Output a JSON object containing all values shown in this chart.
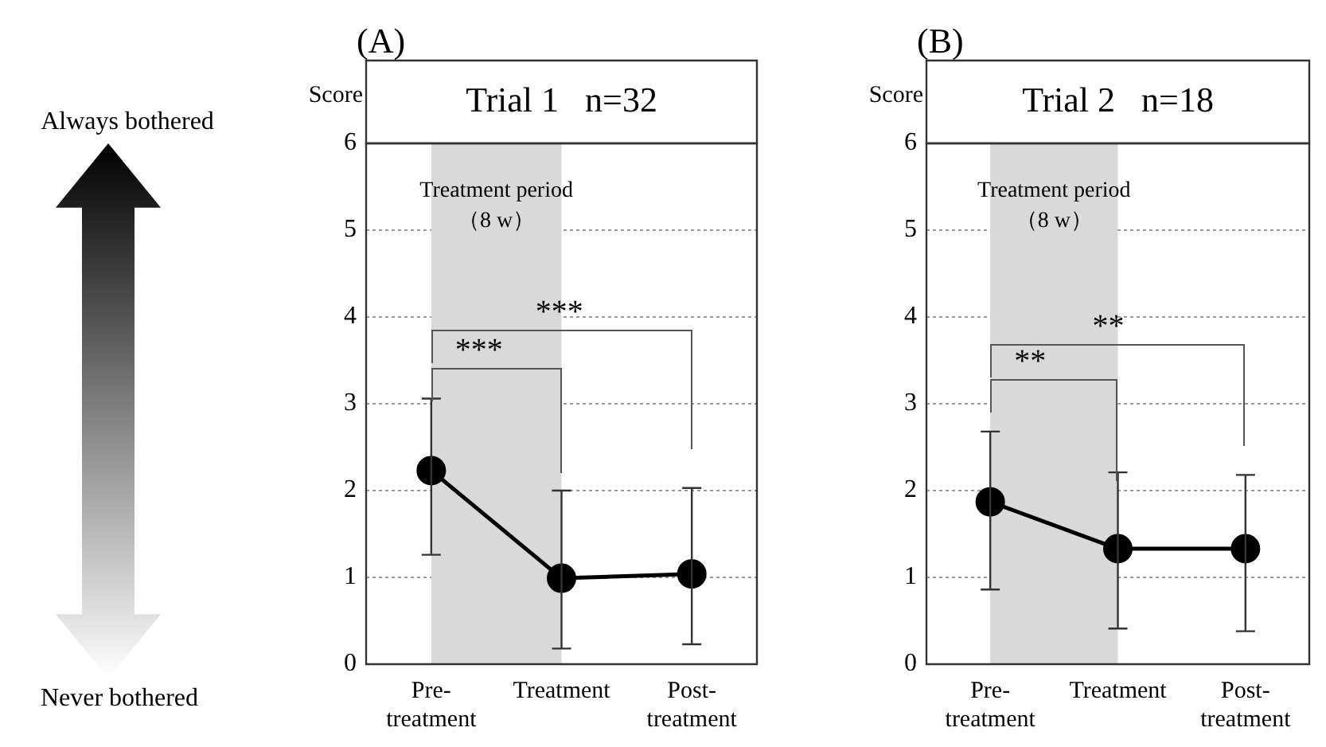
{
  "chart_data": [
    {
      "type": "line",
      "title": "Trial 1   n=32",
      "subtitle": "(A)",
      "ylabel": "Score",
      "categories": [
        "Pre-treatment",
        "Treatment",
        "Post-treatment"
      ],
      "series": [
        {
          "color": "#000000",
          "values": [
            2.23,
            0.99,
            1.04
          ],
          "errors": [
            [
              1.26,
              3.06
            ],
            [
              0.18,
              2.0
            ],
            [
              0.23,
              2.03
            ]
          ]
        }
      ],
      "ylim": [
        0,
        6
      ],
      "yticks": [
        0,
        1,
        2,
        3,
        4,
        5,
        6
      ],
      "grid": "y",
      "legend": false,
      "marker": "circle",
      "line_style": "solid",
      "bands": [
        {
          "axis": "x",
          "from": "Pre-treatment",
          "to": "Treatment",
          "label": "Treatment period\n（8 w）",
          "color": "#d9d9d9"
        }
      ],
      "annotations": [
        "Always bothered",
        "Never bothered",
        {
          "text": "***"
        },
        {
          "text": "***",
          "x": "Treatment"
        }
      ]
    },
    {
      "type": "line",
      "title": "Trial 2   n=18",
      "subtitle": "(B)",
      "ylabel": "Score",
      "categories": [
        "Pre-treatment",
        "Treatment",
        "Post-treatment"
      ],
      "series": [
        {
          "color": "#000000",
          "values": [
            1.87,
            1.33,
            1.33
          ],
          "errors": [
            [
              0.86,
              2.68
            ],
            [
              0.41,
              2.21
            ],
            [
              0.38,
              2.18
            ]
          ]
        }
      ],
      "ylim": [
        0,
        6
      ],
      "yticks": [
        0,
        1,
        2,
        3,
        4,
        5,
        6
      ],
      "grid": "y",
      "legend": false,
      "marker": "circle",
      "line_style": "solid",
      "bands": [
        {
          "axis": "x",
          "from": "Pre-treatment",
          "to": "Treatment",
          "label": "Treatment period\n（8 w）",
          "color": "#d9d9d9"
        }
      ],
      "annotations": [
        {
          "text": "**"
        },
        {
          "text": "**",
          "x": "Treatment"
        }
      ]
    }
  ]
}
